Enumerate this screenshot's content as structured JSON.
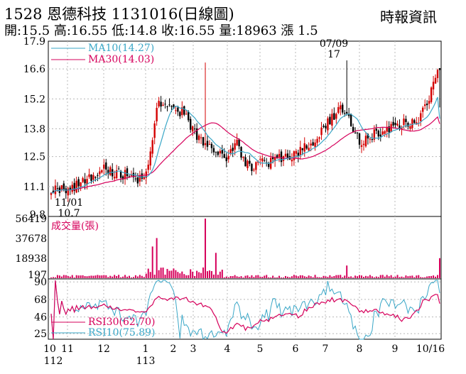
{
  "header": {
    "title": "1528 恩德科技 1131016(日線圖)",
    "quote": "開:15.5 高:16.55 低:14.8 收:16.55 量:18963 漲 1.5",
    "brand": "時報資訊"
  },
  "chart_data": [
    {
      "type": "candlestick",
      "name": "price",
      "ylim": [
        9.8,
        17.9
      ],
      "yticks": [
        "17.9",
        "16.6",
        "15.2",
        "13.8",
        "12.5",
        "11.1",
        "9.8"
      ],
      "legend": [
        {
          "label": "MA10(14.27)",
          "color": "#3aa7c7"
        },
        {
          "label": "MA30(14.03)",
          "color": "#d6005b"
        }
      ],
      "annotations": [
        {
          "label": "07/09",
          "day": "07/09"
        },
        {
          "label": "17",
          "day": "07/09",
          "value": 17.0
        },
        {
          "label": "11/01",
          "day": "11/01"
        },
        {
          "label": "10.7",
          "day": "11/01",
          "value": 10.7
        }
      ],
      "anchors": [
        {
          "label": "10",
          "close": 11.0
        },
        {
          "label": "11",
          "close": 10.9
        },
        {
          "label": "12",
          "close": 11.9
        },
        {
          "label": "1",
          "close": 11.4
        },
        {
          "label": "1b",
          "close": 15.0
        },
        {
          "label": "2",
          "close": 14.7
        },
        {
          "label": "2b",
          "close": 14.5
        },
        {
          "label": "3",
          "close": 13.6
        },
        {
          "label": "4",
          "close": 12.4
        },
        {
          "label": "4b",
          "close": 13.1
        },
        {
          "label": "5",
          "close": 12.0
        },
        {
          "label": "6",
          "close": 12.6
        },
        {
          "label": "6b",
          "close": 13.2
        },
        {
          "label": "7",
          "close": 13.9
        },
        {
          "label": "7b",
          "close": 14.9
        },
        {
          "label": "8",
          "close": 13.2
        },
        {
          "label": "9",
          "close": 14.0
        },
        {
          "label": "9b",
          "close": 14.2
        },
        {
          "label": "10/16",
          "close": 16.55
        }
      ],
      "ma10_last": 14.27,
      "ma30_last": 14.03,
      "colors": {
        "up": "#d40000",
        "down": "#000000",
        "ma10": "#3aa7c7",
        "ma30": "#d6005b"
      }
    },
    {
      "type": "bar",
      "name": "volume",
      "label": "成交量(張)",
      "ylim": [
        0,
        56419
      ],
      "yticks": [
        "56419",
        "37678",
        "18938",
        "197"
      ],
      "spikes": [
        {
          "near": "1b",
          "value": 30000
        },
        {
          "near": "1b",
          "value": 38000
        },
        {
          "near": "2",
          "value": 56419
        },
        {
          "near": "2",
          "value": 24000
        },
        {
          "near": "7",
          "value": 12000
        },
        {
          "near": "10/16",
          "value": 18963
        }
      ],
      "color": "#d6005b"
    },
    {
      "type": "line",
      "name": "rsi",
      "ylim": [
        18,
        92
      ],
      "yticks": [
        "90",
        "68",
        "46",
        "25"
      ],
      "legend": [
        {
          "label": "RSI30(62.70)",
          "color": "#d6005b"
        },
        {
          "label": "RSI10(75.89)",
          "color": "#3aa7c7"
        }
      ],
      "rsi30_last": 62.7,
      "rsi10_last": 75.89
    }
  ],
  "xaxis": {
    "labels": [
      "10",
      "11",
      "12",
      "1",
      "2",
      "3",
      "4",
      "5",
      "6",
      "7",
      "8",
      "9",
      "10/16"
    ],
    "year_labels": [
      "112",
      "113"
    ]
  }
}
